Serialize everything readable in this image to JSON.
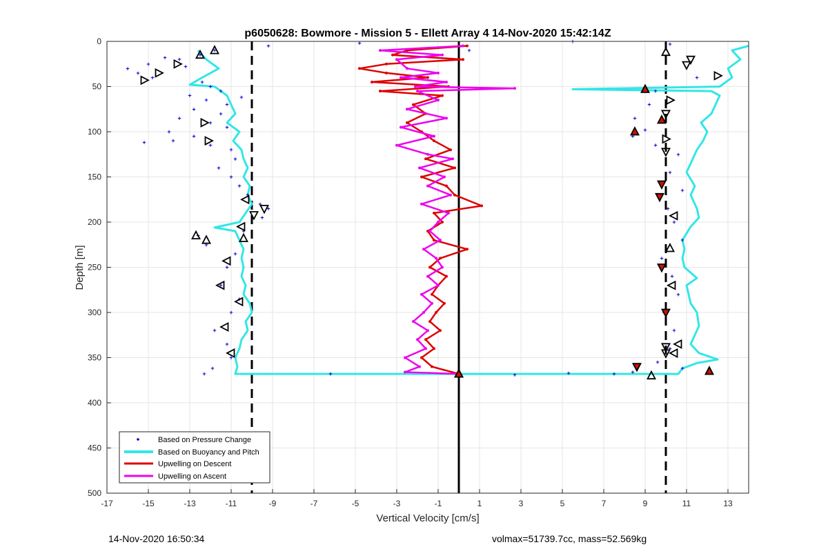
{
  "footer": {
    "timestamp": "14-Nov-2020 16:50:34",
    "volmax": "volmax=51739.7cc, mass=52.569kg"
  },
  "colors": {
    "pressure": "#0000cc",
    "buoyancy": "#33e6e6",
    "descent": "#dd0000",
    "ascent": "#ee00ee",
    "grid": "#e6e6e6"
  },
  "chart_data": {
    "type": "line",
    "title": "p6050628: Bowmore - Mission 5 - Ellett Array 4 14-Nov-2020 15:42:14Z",
    "xlabel": "Vertical Velocity [cm/s]",
    "ylabel": "Depth [m]",
    "xlim": [
      -17,
      14
    ],
    "ylim": [
      0,
      500
    ],
    "y_reversed": true,
    "grid": true,
    "legend_position": "bottom-left",
    "xticks": [
      -17,
      -15,
      -13,
      -11,
      -9,
      -7,
      -5,
      -3,
      -1,
      1,
      3,
      5,
      7,
      9,
      11,
      13
    ],
    "yticks": [
      0,
      50,
      100,
      150,
      200,
      250,
      300,
      350,
      400,
      450,
      500
    ],
    "reference_lines": [
      {
        "x": -10,
        "style": "dashed"
      },
      {
        "x": 0,
        "style": "solid"
      },
      {
        "x": 10,
        "style": "dashed"
      }
    ],
    "series": [
      {
        "name": "Based on Pressure Change",
        "style": "dots",
        "points": [
          [
            -11.8,
            10
          ],
          [
            -12.5,
            15
          ],
          [
            -13.5,
            20
          ],
          [
            -14.2,
            18
          ],
          [
            -15,
            25
          ],
          [
            -16,
            30
          ],
          [
            -15.5,
            35
          ],
          [
            -14.8,
            40
          ],
          [
            -13.2,
            28
          ],
          [
            -12.4,
            45
          ],
          [
            -12,
            50
          ],
          [
            -11.5,
            55
          ],
          [
            -13,
            60
          ],
          [
            -12.2,
            65
          ],
          [
            -11.2,
            70
          ],
          [
            -10.5,
            62
          ],
          [
            -12.8,
            75
          ],
          [
            -11.5,
            80
          ],
          [
            -13.5,
            85
          ],
          [
            -12,
            90
          ],
          [
            -11.2,
            95
          ],
          [
            -14,
            100
          ],
          [
            -12.8,
            105
          ],
          [
            -15.2,
            112
          ],
          [
            -13.8,
            110
          ],
          [
            -12,
            115
          ],
          [
            -11,
            120
          ],
          [
            -10.8,
            130
          ],
          [
            -11.6,
            140
          ],
          [
            -11,
            150
          ],
          [
            -10.6,
            160
          ],
          [
            -10.2,
            170
          ],
          [
            -9.6,
            180
          ],
          [
            -9.2,
            185
          ],
          [
            -9.5,
            195
          ],
          [
            -10.4,
            210
          ],
          [
            -12.6,
            215
          ],
          [
            -12.2,
            225
          ],
          [
            -10.8,
            235
          ],
          [
            -11.2,
            250
          ],
          [
            -11.5,
            270
          ],
          [
            -10.6,
            285
          ],
          [
            -11,
            300
          ],
          [
            -11.8,
            320
          ],
          [
            -11.2,
            335
          ],
          [
            -11,
            350
          ],
          [
            -11.9,
            362
          ],
          [
            -12.3,
            368
          ],
          [
            -6.2,
            368
          ],
          [
            2.7,
            369
          ],
          [
            5.3,
            367
          ],
          [
            7.5,
            368
          ],
          [
            8.4,
            366
          ],
          [
            -9.2,
            5
          ],
          [
            -4.8,
            2
          ],
          [
            0.5,
            10
          ],
          [
            5.5,
            0
          ],
          [
            10.2,
            3
          ],
          [
            11.5,
            40
          ],
          [
            9.5,
            55
          ],
          [
            9.2,
            70
          ],
          [
            8.5,
            85
          ],
          [
            9,
            98
          ],
          [
            8.4,
            105
          ],
          [
            9.5,
            115
          ],
          [
            10.6,
            125
          ],
          [
            10.2,
            145
          ],
          [
            10.8,
            165
          ],
          [
            10.1,
            185
          ],
          [
            10.4,
            200
          ],
          [
            10.8,
            220
          ],
          [
            9.8,
            240
          ],
          [
            10.3,
            260
          ],
          [
            10.6,
            280
          ],
          [
            9.9,
            300
          ],
          [
            10.4,
            320
          ],
          [
            10.2,
            340
          ],
          [
            9.6,
            355
          ],
          [
            10.8,
            362
          ]
        ]
      },
      {
        "name": "Based on Buoyancy and Pitch",
        "style": "line",
        "points": [
          [
            -12.6,
            10
          ],
          [
            -12.2,
            20
          ],
          [
            -11.6,
            30
          ],
          [
            -12.4,
            40
          ],
          [
            -13,
            48
          ],
          [
            -11.8,
            50
          ],
          [
            -11.2,
            60
          ],
          [
            -11,
            70
          ],
          [
            -10.8,
            80
          ],
          [
            -11.2,
            90
          ],
          [
            -10.6,
            100
          ],
          [
            -10.9,
            110
          ],
          [
            -10.5,
            120
          ],
          [
            -10.4,
            130
          ],
          [
            -10.2,
            140
          ],
          [
            -10.4,
            150
          ],
          [
            -10.1,
            160
          ],
          [
            -10.2,
            170
          ],
          [
            -10,
            180
          ],
          [
            -10.3,
            190
          ],
          [
            -10.6,
            200
          ],
          [
            -11.8,
            206
          ],
          [
            -10.8,
            210
          ],
          [
            -10.6,
            220
          ],
          [
            -10.4,
            230
          ],
          [
            -10.5,
            240
          ],
          [
            -10.4,
            250
          ],
          [
            -10.5,
            260
          ],
          [
            -10.3,
            270
          ],
          [
            -10.4,
            280
          ],
          [
            -10.1,
            290
          ],
          [
            -10,
            300
          ],
          [
            -10.3,
            310
          ],
          [
            -10.2,
            320
          ],
          [
            -10.5,
            330
          ],
          [
            -10.6,
            340
          ],
          [
            -10.8,
            350
          ],
          [
            -10.7,
            360
          ],
          [
            -10.8,
            368
          ],
          [
            10.6,
            368
          ],
          [
            10.8,
            362
          ],
          [
            11.5,
            356
          ],
          [
            12.5,
            352
          ],
          [
            11.6,
            345
          ],
          [
            11.2,
            335
          ],
          [
            11.4,
            325
          ],
          [
            11.6,
            315
          ],
          [
            11.5,
            300
          ],
          [
            11.2,
            290
          ],
          [
            11,
            270
          ],
          [
            11.5,
            262
          ],
          [
            10.9,
            250
          ],
          [
            10.8,
            240
          ],
          [
            10.9,
            230
          ],
          [
            10.8,
            220
          ],
          [
            11.2,
            205
          ],
          [
            11.6,
            195
          ],
          [
            11.5,
            185
          ],
          [
            11.2,
            170
          ],
          [
            11.4,
            160
          ],
          [
            11,
            145
          ],
          [
            11.3,
            130
          ],
          [
            11.5,
            120
          ],
          [
            11.8,
            110
          ],
          [
            12,
            100
          ],
          [
            11.7,
            90
          ],
          [
            12.2,
            80
          ],
          [
            12.4,
            70
          ],
          [
            12.6,
            60
          ],
          [
            12.2,
            55
          ],
          [
            5.5,
            53
          ],
          [
            12.6,
            50
          ],
          [
            13.2,
            40
          ],
          [
            13,
            30
          ],
          [
            13.6,
            20
          ],
          [
            13.2,
            10
          ],
          [
            14,
            5
          ]
        ]
      },
      {
        "name": "Upwelling on Descent",
        "style": "line-markers",
        "points": [
          [
            0.4,
            5
          ],
          [
            -2.5,
            10
          ],
          [
            -3.2,
            15
          ],
          [
            0.2,
            20
          ],
          [
            -3.5,
            25
          ],
          [
            -4.8,
            30
          ],
          [
            -3.5,
            35
          ],
          [
            -1.5,
            40
          ],
          [
            -4.2,
            45
          ],
          [
            -0.5,
            50
          ],
          [
            -3.8,
            55
          ],
          [
            -0.8,
            60
          ],
          [
            -2.2,
            70
          ],
          [
            -1.6,
            80
          ],
          [
            -2.5,
            90
          ],
          [
            -1.8,
            100
          ],
          [
            -1.2,
            110
          ],
          [
            -0.4,
            120
          ],
          [
            -1.6,
            130
          ],
          [
            -0.2,
            140
          ],
          [
            -1.8,
            150
          ],
          [
            -0.6,
            160
          ],
          [
            -0.2,
            170
          ],
          [
            1.1,
            182
          ],
          [
            -1.2,
            190
          ],
          [
            -0.8,
            200
          ],
          [
            -1.5,
            210
          ],
          [
            -1.2,
            220
          ],
          [
            0.4,
            230
          ],
          [
            -0.9,
            240
          ],
          [
            -1.4,
            250
          ],
          [
            -0.6,
            260
          ],
          [
            -1,
            270
          ],
          [
            -1.3,
            280
          ],
          [
            -0.7,
            290
          ],
          [
            -1.1,
            300
          ],
          [
            -1.4,
            310
          ],
          [
            -0.9,
            320
          ],
          [
            -1.6,
            330
          ],
          [
            -1.2,
            340
          ],
          [
            -1.8,
            350
          ],
          [
            -1.3,
            360
          ],
          [
            0,
            368
          ]
        ]
      },
      {
        "name": "Upwelling on Ascent",
        "style": "line-markers",
        "points": [
          [
            0.2,
            5
          ],
          [
            -3.8,
            10
          ],
          [
            -0.8,
            15
          ],
          [
            -3,
            20
          ],
          [
            -2.5,
            30
          ],
          [
            -1,
            35
          ],
          [
            -2.8,
            40
          ],
          [
            -0.6,
            45
          ],
          [
            -2.1,
            50
          ],
          [
            2.7,
            52
          ],
          [
            -2,
            55
          ],
          [
            -1,
            65
          ],
          [
            -2.5,
            75
          ],
          [
            -0.6,
            85
          ],
          [
            -2.8,
            95
          ],
          [
            -1.2,
            105
          ],
          [
            -3,
            115
          ],
          [
            -1.5,
            125
          ],
          [
            -0.3,
            130
          ],
          [
            -1.9,
            140
          ],
          [
            -0.7,
            150
          ],
          [
            -1.5,
            160
          ],
          [
            -0.4,
            170
          ],
          [
            -1.8,
            180
          ],
          [
            -0.5,
            190
          ],
          [
            -1,
            200
          ],
          [
            -1.4,
            210
          ],
          [
            -0.9,
            220
          ],
          [
            -1.7,
            230
          ],
          [
            -1.1,
            240
          ],
          [
            -0.8,
            250
          ],
          [
            -1.5,
            260
          ],
          [
            -1,
            270
          ],
          [
            -1.8,
            280
          ],
          [
            -1.3,
            290
          ],
          [
            -1.7,
            300
          ],
          [
            -2.2,
            310
          ],
          [
            -1.5,
            320
          ],
          [
            -2,
            330
          ],
          [
            -1.6,
            340
          ],
          [
            -2.6,
            350
          ],
          [
            -1.9,
            360
          ],
          [
            -2.6,
            366
          ],
          [
            0,
            368
          ]
        ]
      }
    ],
    "markers": [
      {
        "kind": "triangle-up",
        "fill": "none",
        "points": [
          [
            -11.8,
            10
          ],
          [
            -12.5,
            15
          ],
          [
            -10.4,
            218
          ],
          [
            -12.7,
            215
          ],
          [
            -12.2,
            220
          ],
          [
            10,
            12
          ],
          [
            9.3,
            370
          ],
          [
            0,
            368
          ],
          [
            10.2,
            229
          ]
        ]
      },
      {
        "kind": "triangle-right",
        "fill": "none",
        "points": [
          [
            -13.6,
            25
          ],
          [
            -14.5,
            35
          ],
          [
            -15.2,
            43
          ],
          [
            -12.3,
            90
          ],
          [
            -12.1,
            110
          ],
          [
            10.2,
            65
          ],
          [
            12.5,
            38
          ],
          [
            10,
            108
          ]
        ]
      },
      {
        "kind": "triangle-left",
        "fill": "none",
        "points": [
          [
            -10.3,
            175
          ],
          [
            -10.5,
            205
          ],
          [
            -11.2,
            243
          ],
          [
            -11.5,
            270
          ],
          [
            -10.6,
            288
          ],
          [
            -11.3,
            316
          ],
          [
            -11,
            345
          ],
          [
            10.4,
            193
          ],
          [
            10.3,
            270
          ],
          [
            10.6,
            335
          ],
          [
            10.4,
            345
          ]
        ]
      },
      {
        "kind": "triangle-down",
        "fill": "none",
        "points": [
          [
            -9.4,
            185
          ],
          [
            -9.9,
            192
          ],
          [
            11.2,
            20
          ],
          [
            11,
            26
          ],
          [
            10,
            80
          ],
          [
            10,
            122
          ],
          [
            10,
            338
          ],
          [
            10,
            345
          ]
        ]
      },
      {
        "kind": "triangle-up",
        "fill": "red",
        "points": [
          [
            9,
            53
          ],
          [
            9.8,
            87
          ],
          [
            8.5,
            100
          ],
          [
            12.1,
            365
          ],
          [
            0,
            368
          ]
        ]
      },
      {
        "kind": "triangle-down",
        "fill": "red",
        "points": [
          [
            9.8,
            158
          ],
          [
            9.7,
            172
          ],
          [
            9.8,
            250
          ],
          [
            10,
            300
          ],
          [
            8.6,
            360
          ]
        ]
      }
    ]
  }
}
